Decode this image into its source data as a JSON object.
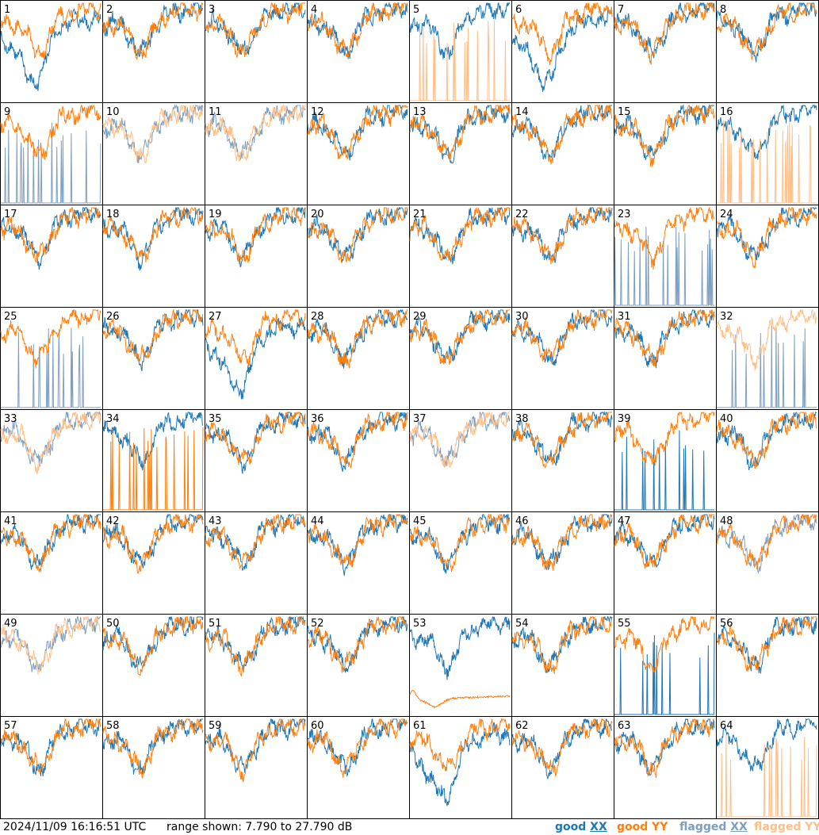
{
  "chart_data": {
    "type": "line",
    "panel_count": 64,
    "layout": "8 columns x 8 rows",
    "ylim_db": [
      7.79,
      27.79
    ],
    "panel_labels": [
      "1",
      "2",
      "3",
      "4",
      "5",
      "6",
      "7",
      "8",
      "9",
      "10",
      "11",
      "12",
      "13",
      "14",
      "15",
      "16",
      "17",
      "18",
      "19",
      "20",
      "21",
      "22",
      "23",
      "24",
      "25",
      "26",
      "27",
      "28",
      "29",
      "30",
      "31",
      "32",
      "33",
      "34",
      "35",
      "36",
      "37",
      "38",
      "39",
      "40",
      "41",
      "42",
      "43",
      "44",
      "45",
      "46",
      "47",
      "48",
      "49",
      "50",
      "51",
      "52",
      "53",
      "54",
      "55",
      "56",
      "57",
      "58",
      "59",
      "60",
      "61",
      "62",
      "63",
      "64"
    ],
    "legend": [
      {
        "label": "good XX",
        "color": "#1f77b4"
      },
      {
        "label": "good YY",
        "color": "#ff7f0e"
      },
      {
        "label": "flagged XX",
        "color": "#7f9fbf"
      },
      {
        "label": "flagged YY",
        "color": "#ffbf87"
      }
    ],
    "panel_traces": {
      "xx_status": [
        "good",
        "good",
        "good",
        "good",
        "good",
        "good",
        "good",
        "good",
        "flagged",
        "flagged",
        "flagged",
        "good",
        "good",
        "good",
        "good",
        "good",
        "good",
        "good",
        "good",
        "good",
        "good",
        "good",
        "flagged",
        "good",
        "flagged",
        "good",
        "good",
        "good",
        "good",
        "good",
        "good",
        "flagged",
        "flagged",
        "good",
        "good",
        "good",
        "flagged",
        "good",
        "good",
        "good",
        "good",
        "good",
        "good",
        "good",
        "good",
        "good",
        "good",
        "flagged",
        "flagged",
        "good",
        "good",
        "good",
        "good",
        "good",
        "good",
        "good",
        "good",
        "good",
        "good",
        "good",
        "good",
        "good",
        "good",
        "good"
      ],
      "yy_status": [
        "good",
        "good",
        "good",
        "good",
        "flagged",
        "good",
        "good",
        "good",
        "good",
        "flagged",
        "flagged",
        "good",
        "good",
        "good",
        "good",
        "flagged",
        "good",
        "good",
        "good",
        "good",
        "good",
        "good",
        "good",
        "good",
        "good",
        "good",
        "good",
        "good",
        "good",
        "good",
        "good",
        "flagged",
        "flagged",
        "good",
        "good",
        "good",
        "flagged",
        "good",
        "good",
        "good",
        "good",
        "good",
        "good",
        "good",
        "good",
        "good",
        "good",
        "good",
        "flagged",
        "good",
        "good",
        "good",
        "good",
        "good",
        "good",
        "good",
        "good",
        "good",
        "good",
        "good",
        "good",
        "good",
        "good",
        "flagged"
      ],
      "xx_spiky": [
        9,
        23,
        25,
        32,
        39,
        55
      ],
      "yy_spiky": [
        5,
        16,
        34,
        64
      ],
      "yy_flat_low": [
        53
      ],
      "xx_dipped": [
        1,
        6,
        27,
        61
      ]
    },
    "x_axis": "time (unlabeled)",
    "y_axis_units": "dB",
    "grid": false
  },
  "footer": {
    "timestamp": "2024/11/09 16:16:51 UTC",
    "range": "range shown: 7.790 to 27.790 dB"
  },
  "legend_labels": {
    "good_xx_word": "good",
    "good_xx_pol": "XX",
    "good_yy": "good YY",
    "flagged_xx_word": "flagged",
    "flagged_xx_pol": "XX",
    "flagged_yy": "flagged YY"
  }
}
